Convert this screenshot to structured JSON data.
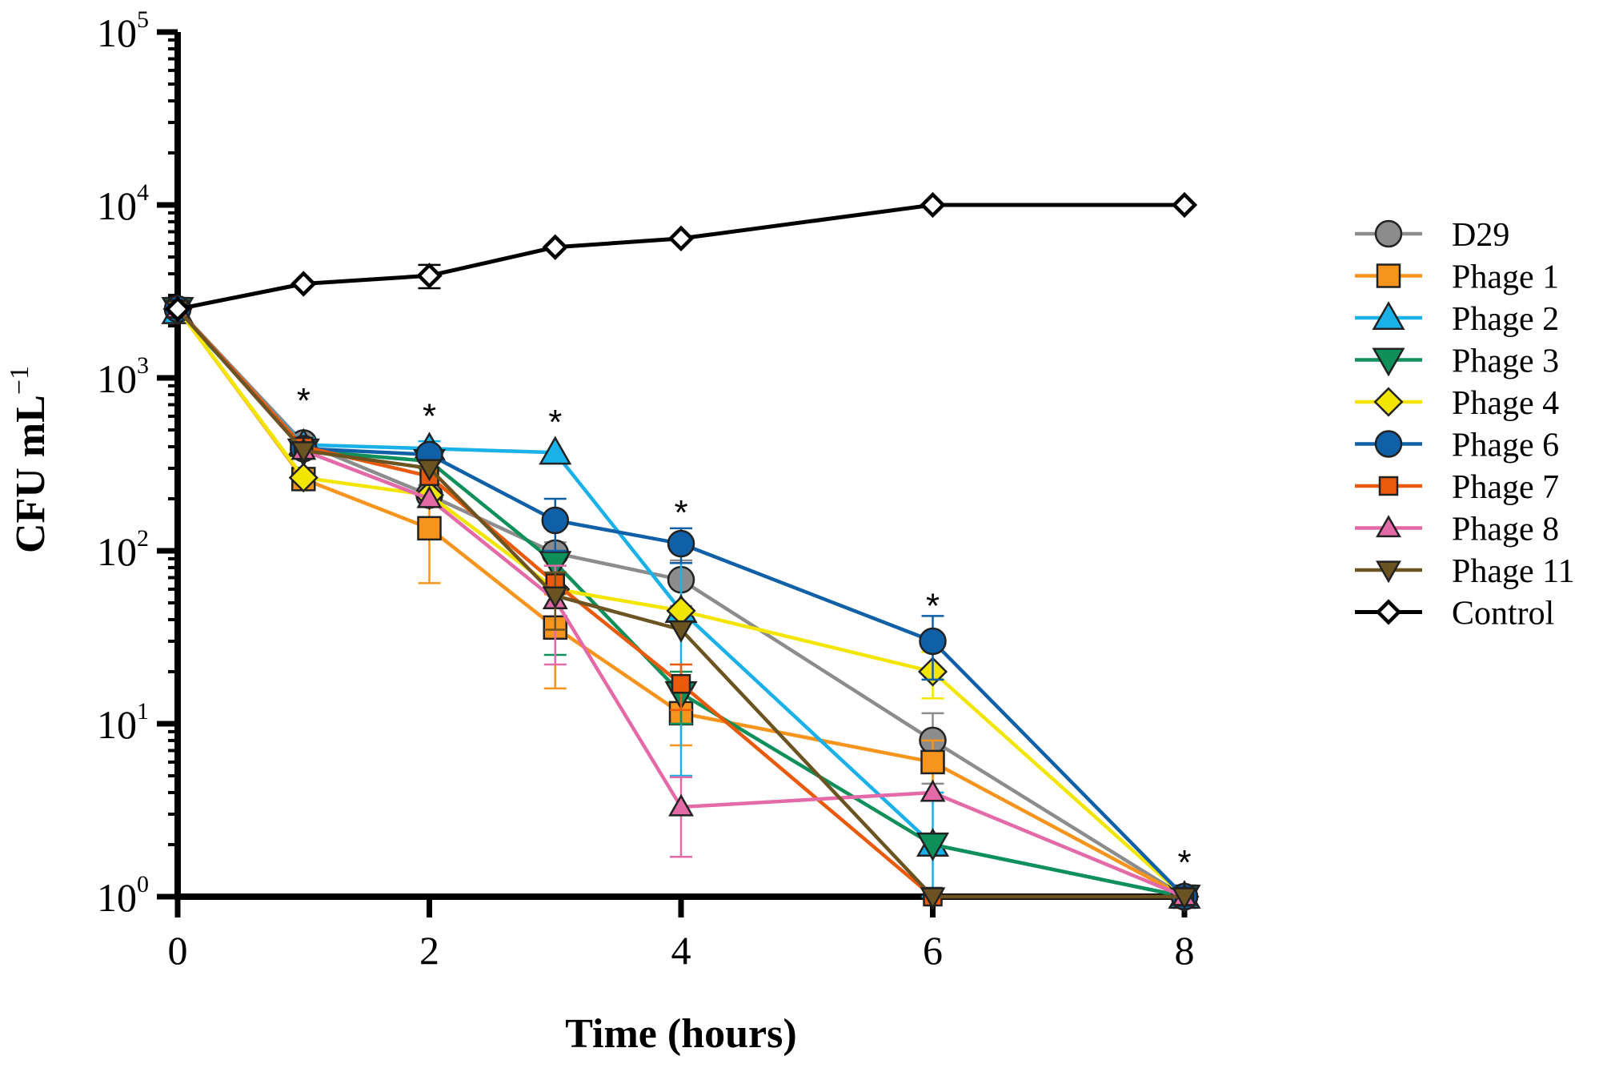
{
  "chart_data": {
    "type": "line",
    "title": "",
    "xlabel": "Time (hours)",
    "ylabel": "CFU mL",
    "ylabel_sup": "−1",
    "yscale": "log10",
    "ylim": [
      1,
      100000
    ],
    "xlim": [
      0,
      8
    ],
    "x_ticks": [
      "0",
      "2",
      "4",
      "6",
      "8"
    ],
    "y_ticks": [
      {
        "base": "10",
        "exp": "0"
      },
      {
        "base": "10",
        "exp": "1"
      },
      {
        "base": "10",
        "exp": "2"
      },
      {
        "base": "10",
        "exp": "3"
      },
      {
        "base": "10",
        "exp": "4"
      },
      {
        "base": "10",
        "exp": "5"
      }
    ],
    "significance": [
      {
        "x": 1,
        "y": 800,
        "label": "*"
      },
      {
        "x": 2,
        "y": 650,
        "label": "*"
      },
      {
        "x": 3,
        "y": 600,
        "label": "*"
      },
      {
        "x": 4,
        "y": 180,
        "label": "*"
      },
      {
        "x": 6,
        "y": 52,
        "label": "*"
      },
      {
        "x": 8,
        "y": 1.7,
        "label": "*"
      }
    ],
    "legend_position": "right",
    "series": [
      {
        "name": "D29",
        "color": "#8c8c8c",
        "marker": "circle",
        "x": [
          0,
          1,
          2,
          3,
          4,
          6,
          8
        ],
        "y": [
          2500,
          420,
          210,
          97,
          68,
          8,
          1
        ],
        "err": [
          0,
          0,
          30,
          15,
          20,
          3.5,
          0
        ]
      },
      {
        "name": "Phage 1",
        "color": "#f7941d",
        "marker": "square",
        "x": [
          0,
          1,
          2,
          3,
          4,
          6,
          8
        ],
        "y": [
          2500,
          260,
          135,
          36,
          11.5,
          6,
          1
        ],
        "err": [
          0,
          0,
          70,
          20,
          4,
          2,
          0
        ]
      },
      {
        "name": "Phage 2",
        "color": "#1ab0e8",
        "marker": "triangle-up",
        "x": [
          0,
          1,
          2,
          3,
          4,
          6,
          8
        ],
        "y": [
          2400,
          410,
          390,
          370,
          45,
          2,
          1
        ],
        "err": [
          0,
          40,
          40,
          0,
          40,
          2,
          0
        ]
      },
      {
        "name": "Phage 3",
        "color": "#0f8f5a",
        "marker": "triangle-down",
        "x": [
          0,
          1,
          2,
          3,
          4,
          6,
          8
        ],
        "y": [
          2500,
          380,
          330,
          85,
          15,
          2,
          1
        ],
        "err": [
          0,
          30,
          30,
          60,
          5,
          0,
          0
        ]
      },
      {
        "name": "Phage 4",
        "color": "#f2e500",
        "marker": "diamond",
        "x": [
          0,
          1,
          2,
          3,
          4,
          6,
          8
        ],
        "y": [
          2500,
          265,
          210,
          60,
          45,
          20,
          1
        ],
        "err": [
          0,
          0,
          0,
          0,
          0,
          6,
          0
        ]
      },
      {
        "name": "Phage 6",
        "color": "#1060a8",
        "marker": "circle",
        "x": [
          0,
          1,
          2,
          3,
          4,
          6,
          8
        ],
        "y": [
          2500,
          390,
          360,
          150,
          110,
          30,
          1
        ],
        "err": [
          0,
          0,
          0,
          50,
          25,
          12,
          0
        ]
      },
      {
        "name": "Phage 7",
        "color": "#ea5a0c",
        "marker": "square-small",
        "x": [
          0,
          1,
          2,
          3,
          4,
          6,
          8
        ],
        "y": [
          2500,
          400,
          270,
          65,
          17,
          1,
          1
        ],
        "err": [
          0,
          0,
          0,
          0,
          5,
          0,
          0
        ]
      },
      {
        "name": "Phage 8",
        "color": "#e36aa6",
        "marker": "triangle-up-small",
        "x": [
          0,
          1,
          2,
          3,
          4,
          6,
          8
        ],
        "y": [
          2500,
          380,
          200,
          52,
          3.3,
          4,
          1
        ],
        "err": [
          0,
          0,
          0,
          30,
          1.6,
          0,
          0
        ]
      },
      {
        "name": "Phage 11",
        "color": "#6b5421",
        "marker": "triangle-down-small",
        "x": [
          0,
          1,
          2,
          3,
          4,
          6,
          8
        ],
        "y": [
          2500,
          380,
          300,
          55,
          35,
          1,
          1
        ],
        "err": [
          0,
          0,
          0,
          20,
          0,
          0,
          0
        ]
      },
      {
        "name": "Control",
        "color": "#000000",
        "marker": "diamond-open",
        "x": [
          0,
          1,
          2,
          3,
          4,
          6,
          8
        ],
        "y": [
          2500,
          3500,
          3900,
          5700,
          6400,
          10000,
          10000
        ],
        "err": [
          0,
          0,
          600,
          0,
          0,
          0,
          0
        ]
      }
    ]
  }
}
